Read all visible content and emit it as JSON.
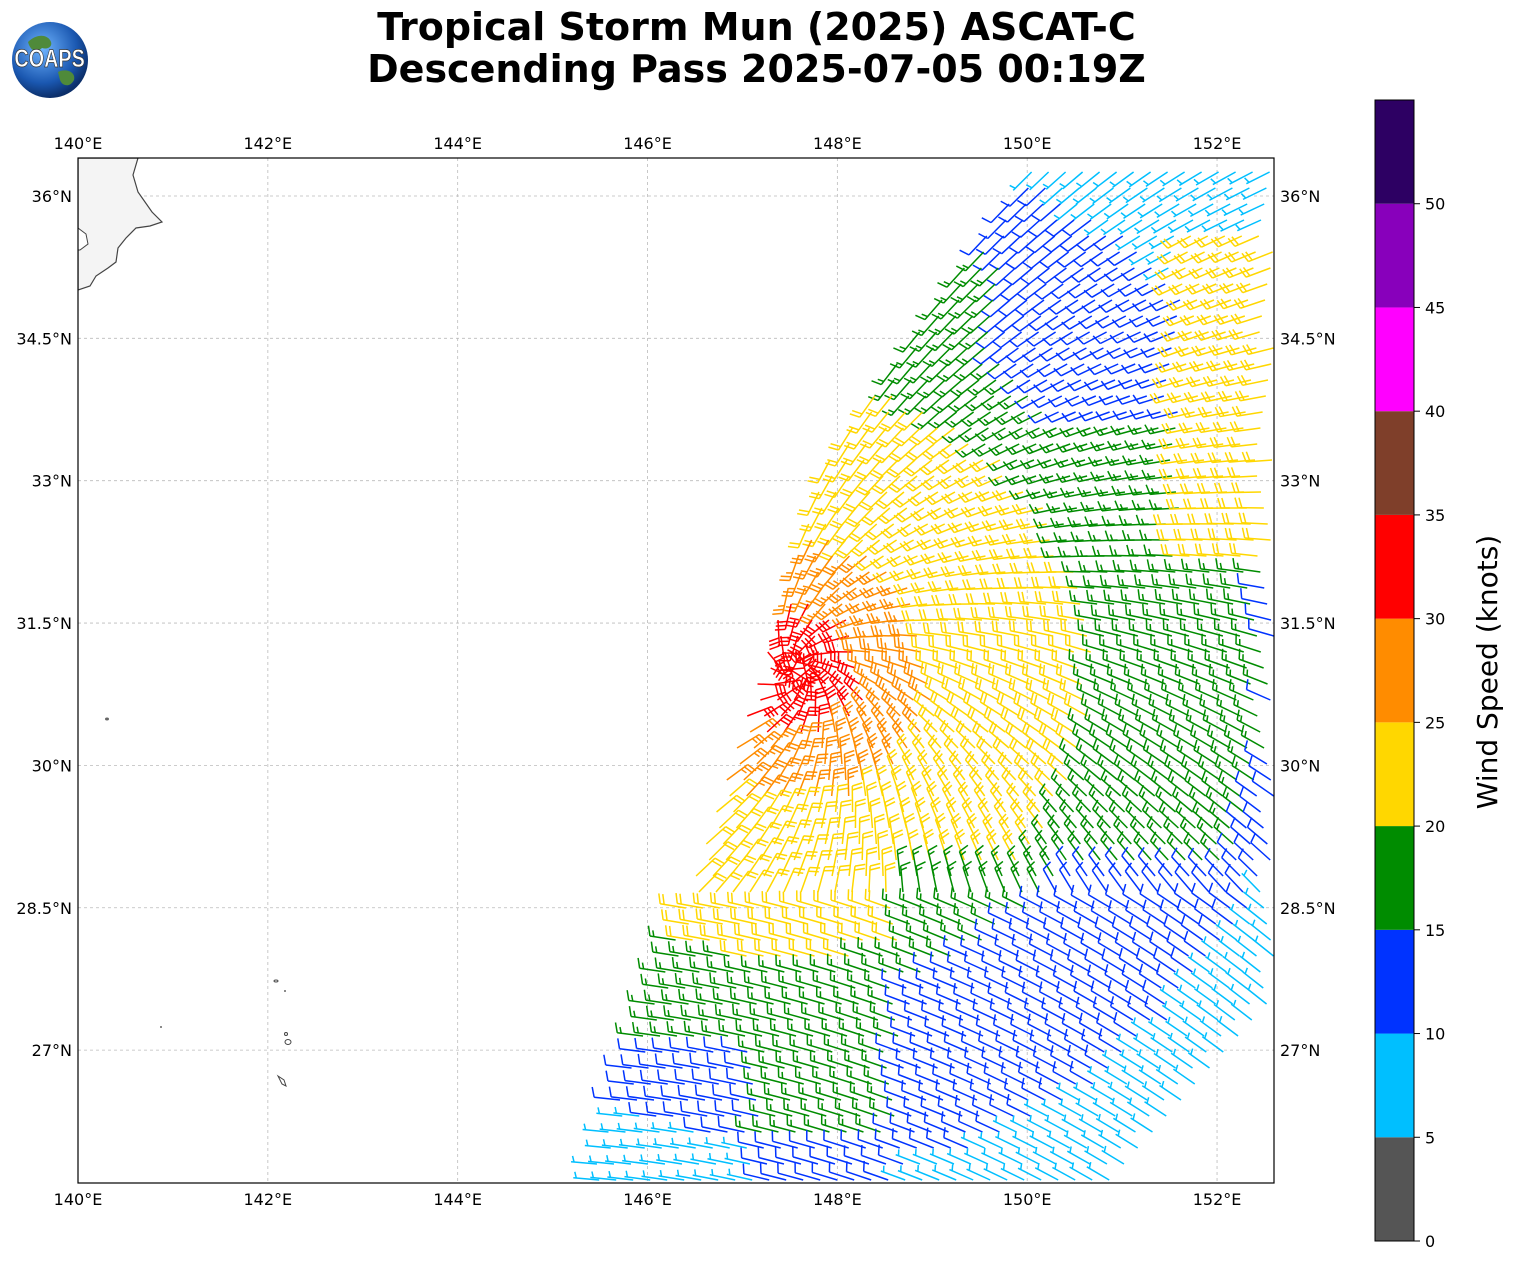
{
  "title": {
    "line1": "Tropical Storm Mun (2025) ASCAT-C",
    "line2": "Descending Pass 2025-07-05 00:19Z"
  },
  "logo": {
    "text": "COAPS",
    "icon": "globe-logo"
  },
  "map": {
    "lon_range": [
      140.0,
      152.6
    ],
    "lat_range": [
      25.6,
      36.4
    ],
    "lon_ticks": [
      "140°E",
      "142°E",
      "144°E",
      "146°E",
      "148°E",
      "150°E",
      "152°E"
    ],
    "lat_ticks": [
      "36°N",
      "34.5°N",
      "33°N",
      "31.5°N",
      "30°N",
      "28.5°N",
      "27°N"
    ],
    "gridlines": true
  },
  "colorbar": {
    "label": "Wind Speed (knots)",
    "ticks": [
      "0",
      "5",
      "10",
      "15",
      "20",
      "25",
      "30",
      "35",
      "40",
      "45",
      "50"
    ],
    "bins": [
      {
        "min": 0,
        "max": 5,
        "color": "#555555"
      },
      {
        "min": 5,
        "max": 10,
        "color": "#00bfff"
      },
      {
        "min": 10,
        "max": 15,
        "color": "#0033ff"
      },
      {
        "min": 15,
        "max": 20,
        "color": "#008c00"
      },
      {
        "min": 20,
        "max": 25,
        "color": "#ffd700"
      },
      {
        "min": 25,
        "max": 30,
        "color": "#ff8c00"
      },
      {
        "min": 30,
        "max": 35,
        "color": "#ff0000"
      },
      {
        "min": 35,
        "max": 40,
        "color": "#7f3f2a"
      },
      {
        "min": 40,
        "max": 45,
        "color": "#ff00ff"
      },
      {
        "min": 45,
        "max": 50,
        "color": "#8800bb"
      },
      {
        "min": 50,
        "max": 55,
        "color": "#2d0063"
      }
    ]
  },
  "swath": {
    "storm_center": {
      "lon": 147.6,
      "lat": 31.0
    }
  }
}
